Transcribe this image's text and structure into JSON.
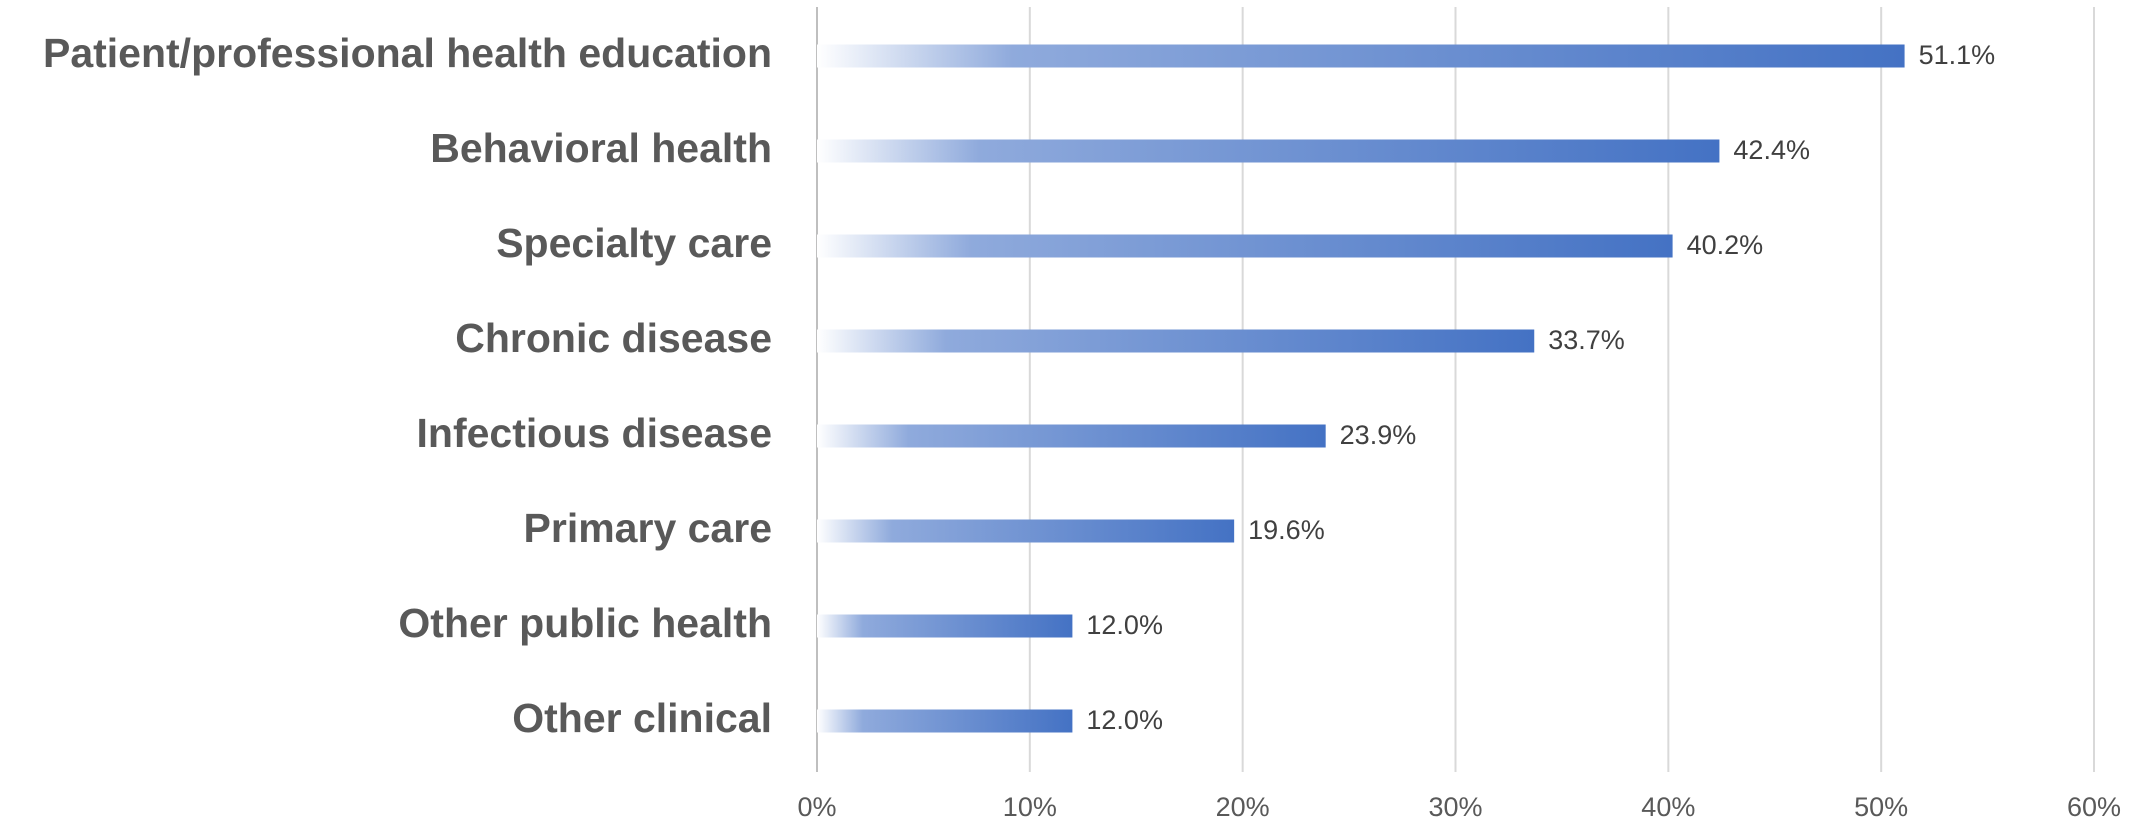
{
  "chart_data": {
    "type": "barh",
    "categories": [
      "Patient/professional health education",
      "Behavioral health",
      "Specialty care",
      "Chronic disease",
      "Infectious disease",
      "Primary care",
      "Other public health",
      "Other clinical"
    ],
    "values": [
      51.1,
      42.4,
      40.2,
      33.7,
      23.9,
      19.6,
      12.0,
      12.0
    ],
    "value_labels": [
      "51.1%",
      "42.4%",
      "40.2%",
      "33.7%",
      "23.9%",
      "19.6%",
      "12.0%",
      "12.0%"
    ],
    "color": "#4472c4",
    "xlim": [
      0,
      60
    ],
    "xticks": [
      {
        "value": 0,
        "label": "0%"
      },
      {
        "value": 10,
        "label": "10%"
      },
      {
        "value": 20,
        "label": "20%"
      },
      {
        "value": 30,
        "label": "30%"
      },
      {
        "value": 40,
        "label": "40%"
      },
      {
        "value": 50,
        "label": "50%"
      },
      {
        "value": 60,
        "label": "60%"
      }
    ],
    "grid": true
  }
}
